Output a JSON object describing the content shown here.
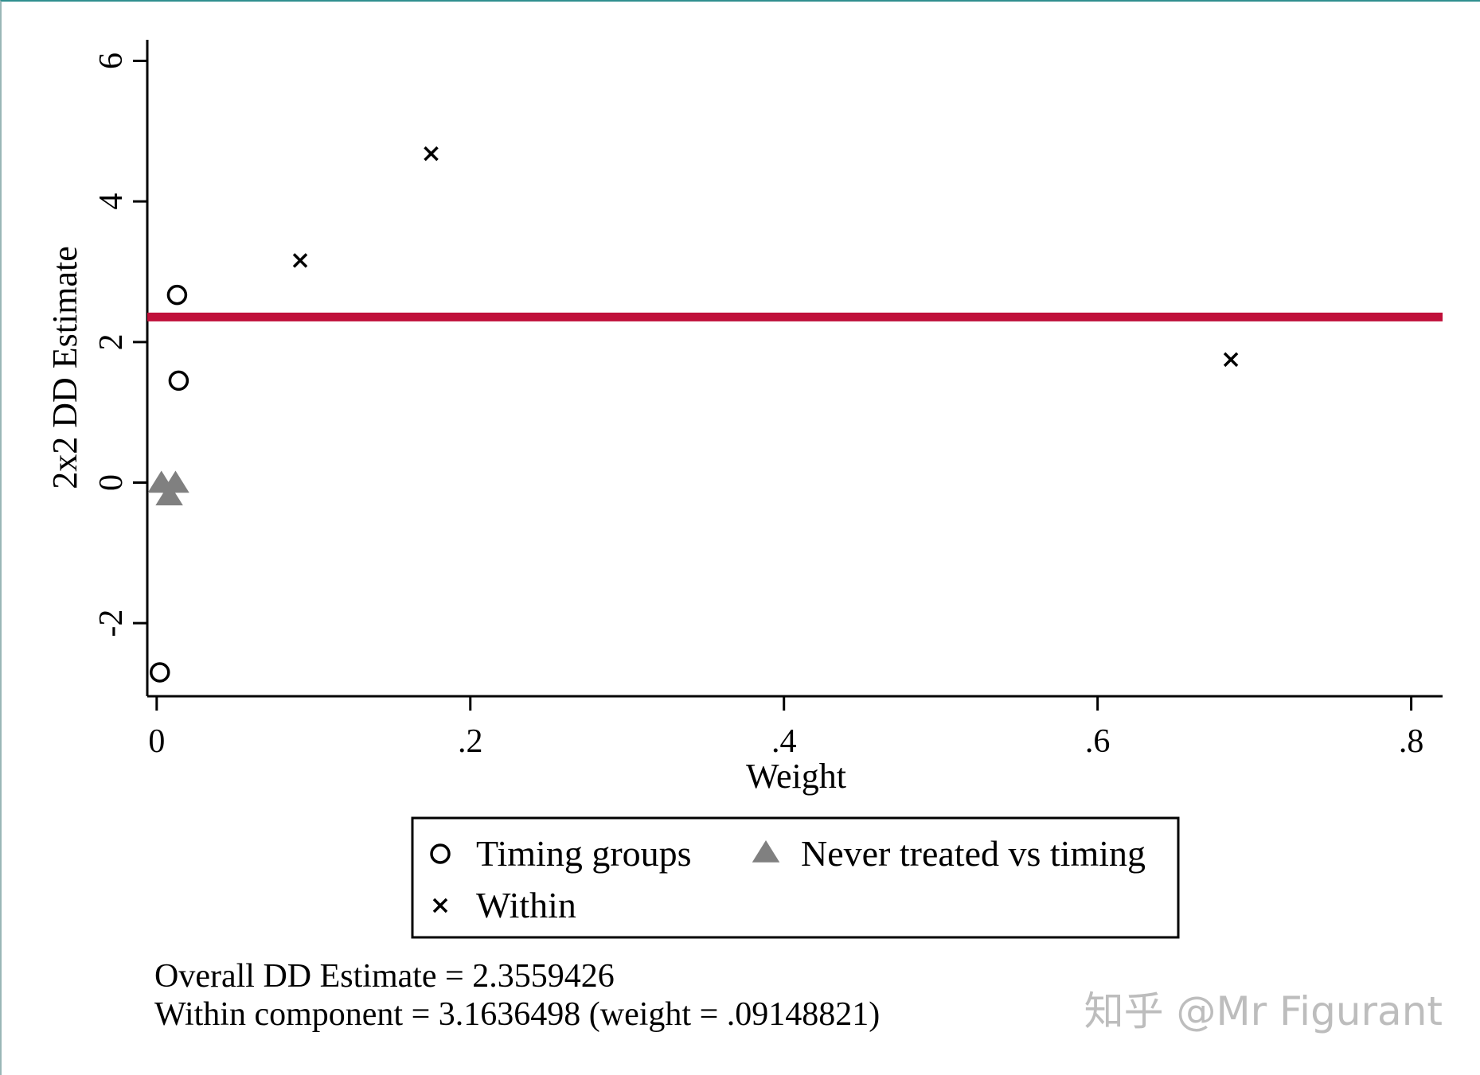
{
  "chart_data": {
    "type": "scatter",
    "xlabel": "Weight",
    "ylabel": "2x2 DD Estimate",
    "xlim": [
      -0.006,
      0.82
    ],
    "ylim": [
      -3.04,
      6.3
    ],
    "x_ticks": [
      0,
      0.2,
      0.4,
      0.6,
      0.8
    ],
    "x_tick_labels": [
      "0",
      ".2",
      ".4",
      ".6",
      ".8"
    ],
    "y_ticks": [
      -2,
      0,
      2,
      4,
      6
    ],
    "y_tick_labels": [
      "-2",
      "0",
      "2",
      "4",
      "6"
    ],
    "grid": false,
    "reference_line": {
      "y": 2.3559426,
      "color": "#c0103a"
    },
    "series": [
      {
        "name": "Timing groups",
        "marker": "circle",
        "color": "#000000",
        "points": [
          {
            "x": 0.013,
            "y": 2.67
          },
          {
            "x": 0.014,
            "y": 1.45
          },
          {
            "x": 0.002,
            "y": -2.7
          }
        ]
      },
      {
        "name": "Never treated vs timing",
        "marker": "triangle",
        "color": "#808080",
        "points": [
          {
            "x": 0.003,
            "y": 0.0
          },
          {
            "x": 0.012,
            "y": 0.0
          },
          {
            "x": 0.008,
            "y": -0.18
          }
        ]
      },
      {
        "name": "Within",
        "marker": "x",
        "color": "#000000",
        "points": [
          {
            "x": 0.0915,
            "y": 3.16
          },
          {
            "x": 0.175,
            "y": 4.68
          },
          {
            "x": 0.685,
            "y": 1.75
          }
        ]
      }
    ],
    "legend": {
      "position": "bottom",
      "entries": [
        "Timing groups",
        "Never treated vs timing",
        "Within"
      ]
    },
    "notes": [
      "Overall DD Estimate = 2.3559426",
      "Within component = 3.1636498 (weight = .09148821)"
    ]
  },
  "watermark": "知乎 @Mr Figurant"
}
